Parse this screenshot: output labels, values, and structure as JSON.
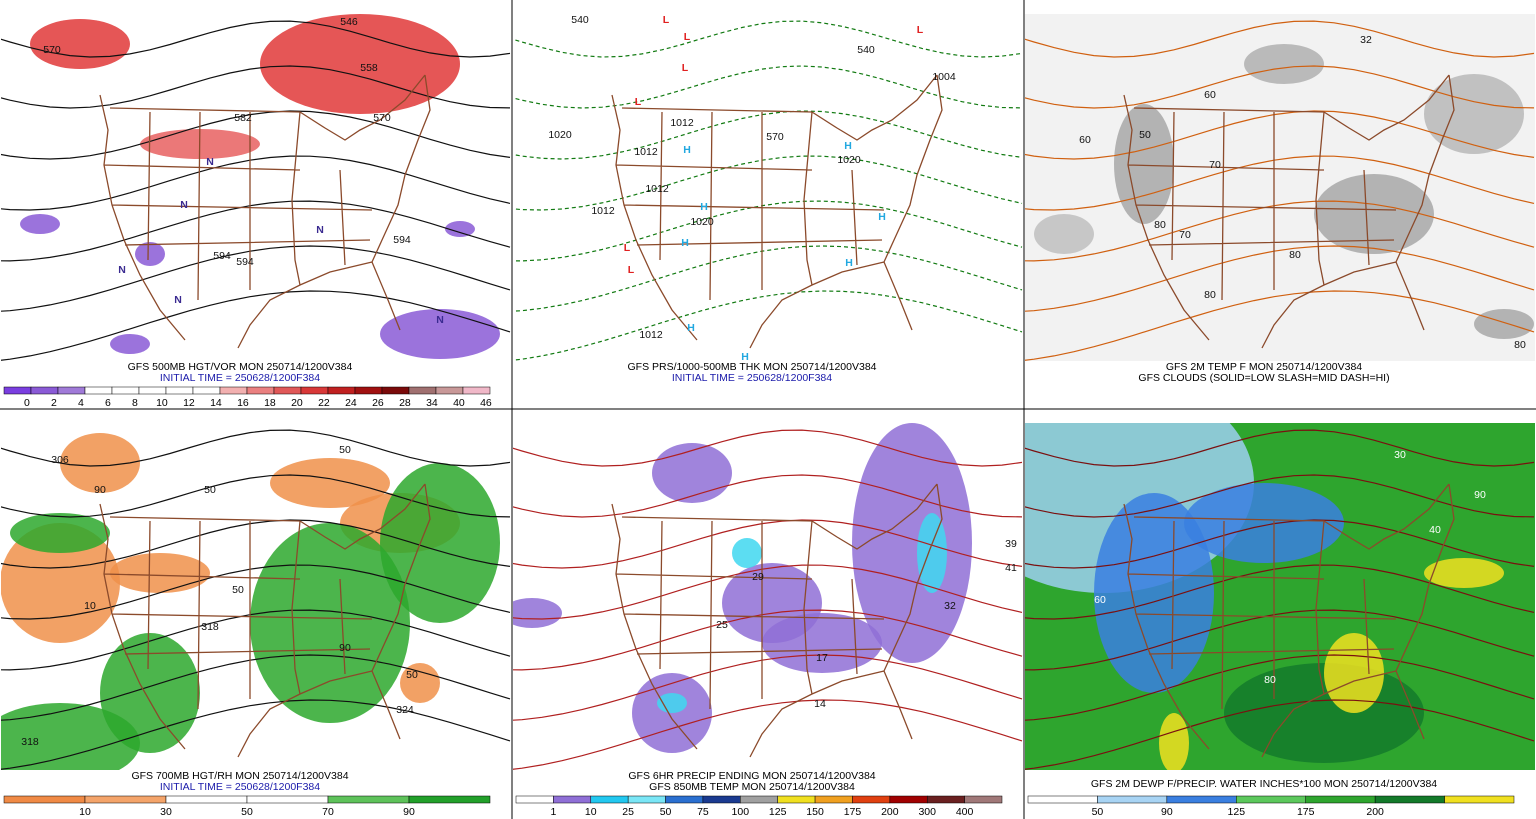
{
  "panels": [
    {
      "captions": [
        "GFS 500MB HGT/VOR MON 250714/1200V384",
        "INITIAL TIME = 250628/1200F384"
      ],
      "colorbar": {
        "colors": [
          "#7a3ee0",
          "#8a5ad6",
          "#a07ad8",
          "#ffffff",
          "#ffffff",
          "#ffffff",
          "#ffffff",
          "#ffffff",
          "#f2b0b0",
          "#ea8080",
          "#e05858",
          "#d83838",
          "#c02020",
          "#a01010",
          "#7a0a0a",
          "#a07070",
          "#c89898",
          "#f0b8c8"
        ],
        "labels": [
          "0",
          "2",
          "4",
          "6",
          "8",
          "10",
          "12",
          "14",
          "16",
          "18",
          "20",
          "22",
          "24",
          "26",
          "28",
          "34",
          "40",
          "46"
        ]
      },
      "labels": [
        "570",
        "546",
        "558",
        "582",
        "570",
        "594",
        "594",
        "594"
      ],
      "symbols": [
        "N",
        "N",
        "N",
        "N",
        "N",
        "N"
      ]
    },
    {
      "captions": [
        "GFS PRS/1000-500MB THK MON 250714/1200V384",
        "INITIAL TIME = 250628/1200F384"
      ],
      "labels": [
        "540",
        "1020",
        "1012",
        "1012",
        "1012",
        "1012",
        "1020",
        "1012",
        "540",
        "570",
        "1004",
        "1020"
      ],
      "symbols": [
        "H",
        "H",
        "H",
        "H",
        "H",
        "H",
        "H",
        "H",
        "L",
        "L",
        "L",
        "L",
        "L",
        "L",
        "L"
      ]
    },
    {
      "captions": [
        "GFS 2M TEMP F MON 250714/1200V384",
        "GFS CLOUDS (SOLID=LOW SLASH=MID DASH=HI)"
      ],
      "labels": [
        "60",
        "70",
        "80",
        "80",
        "80",
        "32",
        "50",
        "60",
        "70",
        "80"
      ]
    },
    {
      "captions": [
        "GFS 700MB HGT/RH MON 250714/1200V384",
        "INITIAL TIME = 250628/1200F384"
      ],
      "colorbar": {
        "colors": [
          "#f08a45",
          "#f4a46a",
          "#ffffff",
          "#ffffff",
          "#5ec25a",
          "#22a02a"
        ],
        "labels": [
          "10",
          "30",
          "50",
          "70",
          "90"
        ]
      },
      "labels": [
        "306",
        "90",
        "50",
        "50",
        "10",
        "50",
        "318",
        "90",
        "50",
        "324",
        "318"
      ]
    },
    {
      "captions": [
        "GFS 6HR PRECIP ENDING MON 250714/1200V384",
        "GFS 850MB TEMP MON 250714/1200V384"
      ],
      "colorbar": {
        "colors": [
          "#ffffff",
          "#8f6fd6",
          "#22c8f0",
          "#7ae6f6",
          "#2a6fd0",
          "#1a3a90",
          "#a0a0a0",
          "#f0e020",
          "#f0a020",
          "#e04010",
          "#a00000",
          "#6a2020",
          "#a07878"
        ],
        "labels": [
          "1",
          "10",
          "25",
          "50",
          "75",
          "100",
          "125",
          "150",
          "175",
          "200",
          "300",
          "400"
        ]
      },
      "labels": [
        "29",
        "25",
        "17",
        "41",
        "39",
        "32",
        "14"
      ]
    },
    {
      "captions": [
        "GFS 2M DEWP F/PRECIP. WATER INCHES*100 MON 250714/1200V384"
      ],
      "colorbar": {
        "colors": [
          "#ffffff",
          "#a8d4f4",
          "#3a7fe0",
          "#5cc85c",
          "#2ea52e",
          "#137a2a",
          "#f0e020"
        ],
        "labels": [
          "50",
          "90",
          "125",
          "175",
          "200"
        ]
      },
      "labels": [
        "30",
        "40",
        "60",
        "80",
        "90"
      ]
    }
  ]
}
